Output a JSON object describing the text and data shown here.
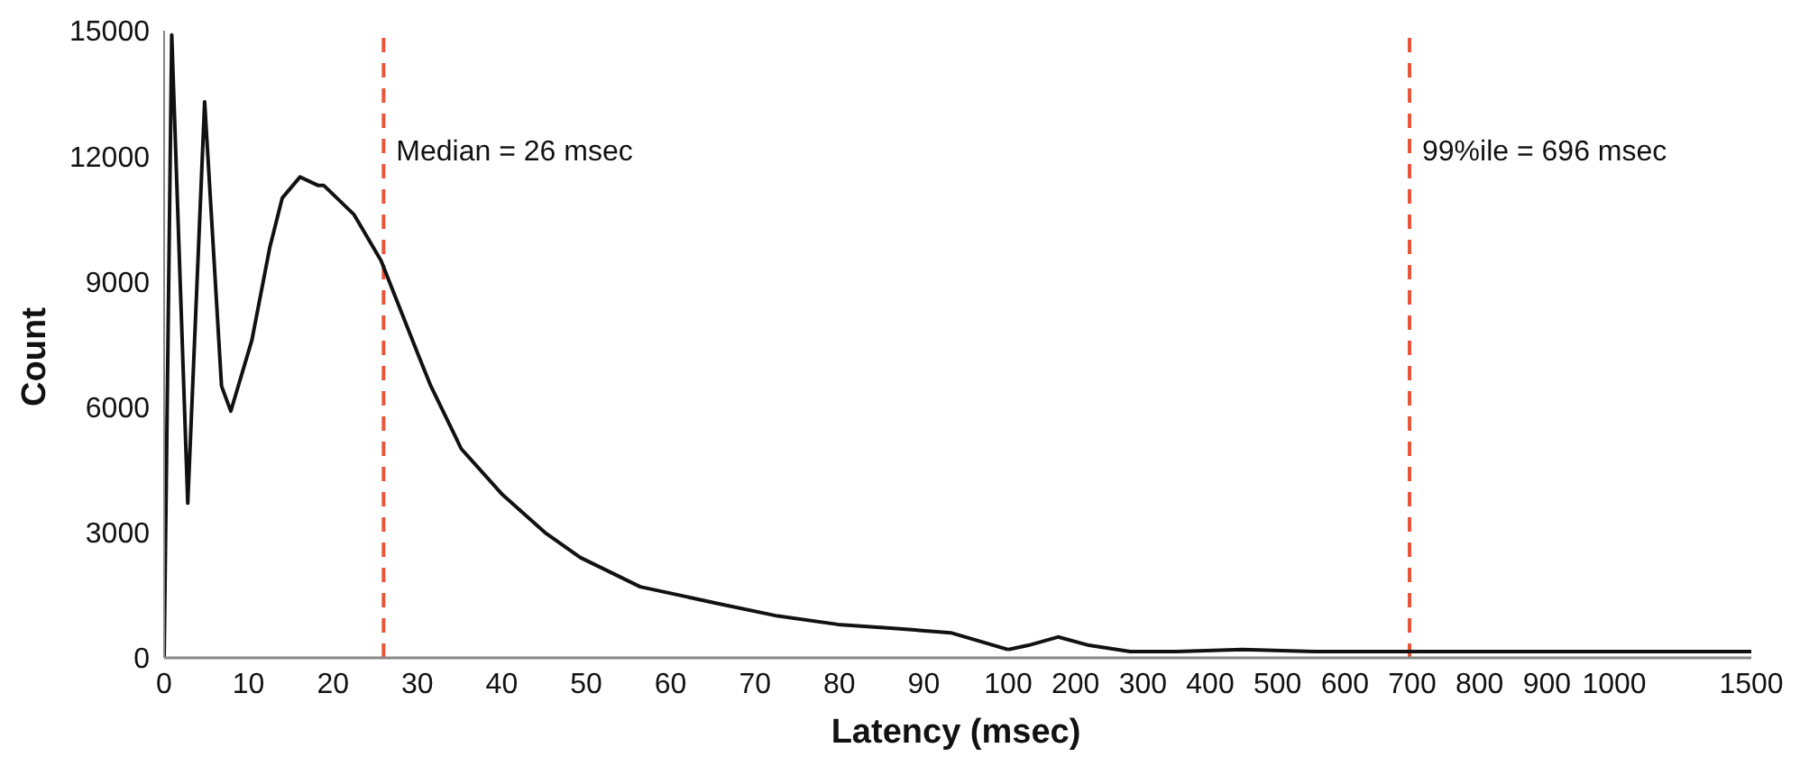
{
  "chart_data": [
    {
      "type": "line",
      "xlabel": "Latency (msec)",
      "ylabel": "Count",
      "x": [
        0,
        0.9,
        2.8,
        4.8,
        6.8,
        7.9,
        10.4,
        12.5,
        14,
        16.1,
        18.2,
        18.9,
        22.5,
        25.7,
        30.2,
        31.6,
        35.2,
        40.1,
        45.1,
        49.3,
        56.4,
        65.6,
        72.7,
        79.8,
        86.8,
        93.2,
        100
      ],
      "series": [
        {
          "color": "#111111",
          "values": [
            0,
            14900,
            3700,
            13300,
            6500,
            5900,
            7600,
            9800,
            11000,
            11500,
            11300,
            11300,
            10600,
            9500,
            7200,
            6500,
            5000,
            3900,
            3000,
            2400,
            1700,
            1300,
            1000,
            800,
            700,
            600,
            200
          ]
        }
      ],
      "xlim": [
        0,
        100
      ],
      "xticks": [
        0,
        10,
        20,
        30,
        40,
        50,
        60,
        70,
        80,
        90
      ],
      "ylim": [
        0,
        15000
      ],
      "yticks": [
        0,
        3000,
        6000,
        9000,
        12000,
        15000
      ],
      "ref_lines": [
        {
          "axis": "x",
          "value": 26,
          "label": "Median = 26 msec",
          "color": "#e8553a",
          "line_style": "dashed"
        }
      ],
      "line_style": "solid"
    },
    {
      "type": "line",
      "x": [
        100,
        130,
        174,
        220,
        281,
        350,
        448,
        555,
        720,
        821,
        1000
      ],
      "series": [
        {
          "color": "#111111",
          "values": [
            200,
            300,
            500,
            300,
            150,
            150,
            200,
            150,
            150,
            150,
            150
          ]
        }
      ],
      "xlim": [
        100,
        1000
      ],
      "xticks": [
        100,
        200,
        300,
        400,
        500,
        600,
        700,
        800,
        900
      ],
      "ylim": [
        0,
        15000
      ],
      "tick_labels": "x",
      "ref_lines": [
        {
          "axis": "x",
          "value": 696,
          "label": "99%ile = 696 msec",
          "color": "#e8553a",
          "line_style": "dashed"
        }
      ],
      "line_style": "solid"
    },
    {
      "type": "line",
      "x": [
        1000,
        1250,
        1500
      ],
      "series": [
        {
          "color": "#111111",
          "values": [
            150,
            150,
            150
          ]
        }
      ],
      "xlim": [
        1000,
        1500
      ],
      "xticks": [
        1000,
        1500
      ],
      "ylim": [
        0,
        15000
      ],
      "tick_labels": "x",
      "line_style": "solid"
    }
  ]
}
